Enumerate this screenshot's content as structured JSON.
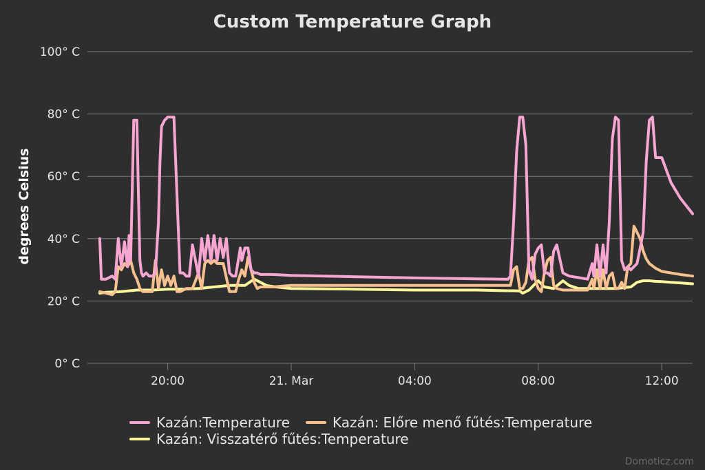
{
  "chart_data": {
    "type": "line",
    "title": "Custom Temperature Graph",
    "ylabel": "degrees Celsius",
    "xlabel": "",
    "ylim": [
      0,
      100
    ],
    "y_ticks": [
      0,
      20,
      40,
      60,
      80,
      100
    ],
    "y_tick_labels": [
      "0° C",
      "20° C",
      "40° C",
      "60° C",
      "80° C",
      "100° C"
    ],
    "x_ticks": [
      {
        "label": "20:00",
        "hour": 20
      },
      {
        "label": "21. Mar",
        "hour": 24
      },
      {
        "label": "04:00",
        "hour": 28
      },
      {
        "label": "08:00",
        "hour": 32
      },
      {
        "label": "12:00",
        "hour": 36
      }
    ],
    "xlim_hours": [
      17.4,
      37.0
    ],
    "grid": true,
    "legend": "bottom",
    "series": [
      {
        "name": "Kazán:Temperature",
        "color": "#f7a6d2",
        "x": [
          17.8,
          17.85,
          18.0,
          18.2,
          18.3,
          18.4,
          18.5,
          18.6,
          18.7,
          18.75,
          18.8,
          18.85,
          18.9,
          19.0,
          19.05,
          19.1,
          19.15,
          19.2,
          19.3,
          19.4,
          19.5,
          19.6,
          19.7,
          19.75,
          19.8,
          19.85,
          19.9,
          20.0,
          20.2,
          20.4,
          20.5,
          20.6,
          20.7,
          20.8,
          21.0,
          21.1,
          21.2,
          21.3,
          21.4,
          21.5,
          21.6,
          21.7,
          21.8,
          21.9,
          22.0,
          22.1,
          22.2,
          22.3,
          22.35,
          22.4,
          22.5,
          22.6,
          22.7,
          22.8,
          22.9,
          23.0,
          23.2,
          23.4,
          24.0,
          26.0,
          28.0,
          30.0,
          31.0,
          31.02,
          31.1,
          31.2,
          31.3,
          31.4,
          31.5,
          31.6,
          31.7,
          31.8,
          31.9,
          32.0,
          32.1,
          32.2,
          32.3,
          32.4,
          32.5,
          32.6,
          32.8,
          33.0,
          33.3,
          33.6,
          33.75,
          33.8,
          33.9,
          34.0,
          34.1,
          34.2,
          34.3,
          34.4,
          34.5,
          34.6,
          34.7,
          34.8,
          34.9,
          35.0,
          35.1,
          35.2,
          35.3,
          35.4,
          35.5,
          35.6,
          35.7,
          35.8,
          36.0,
          36.3,
          36.6,
          37.0
        ],
        "values": [
          40,
          27,
          27,
          28,
          27,
          40,
          31,
          39,
          31,
          41,
          33,
          55,
          78,
          78,
          55,
          33,
          29,
          28,
          29,
          28,
          28,
          29,
          45,
          65,
          76,
          77,
          78,
          79,
          79,
          29,
          29,
          28,
          28,
          38,
          28,
          40,
          33,
          41,
          33,
          41,
          33,
          40,
          34,
          40,
          29,
          28,
          28,
          34,
          37,
          33,
          37,
          37,
          30,
          29,
          29,
          28.5,
          28.5,
          28.5,
          28.2,
          27.8,
          27.4,
          27.1,
          27,
          27,
          28,
          45,
          68,
          79,
          79,
          70,
          30,
          27,
          35,
          37,
          38,
          29,
          29,
          28,
          36,
          38,
          29,
          28,
          27.5,
          27,
          32,
          28,
          38,
          28,
          38,
          29,
          45,
          72,
          79,
          78,
          33,
          30,
          31,
          30,
          31,
          32,
          37,
          42,
          65,
          78,
          79,
          66,
          66,
          58,
          53,
          48
        ]
      },
      {
        "name": "Kazán: Előre menő fűtés:Temperature",
        "color": "#f6c08f",
        "x": [
          17.8,
          18.0,
          18.2,
          18.3,
          18.4,
          18.5,
          18.6,
          18.7,
          18.8,
          18.9,
          19.0,
          19.1,
          19.2,
          19.3,
          19.5,
          19.6,
          19.7,
          19.8,
          19.9,
          20.0,
          20.1,
          20.2,
          20.3,
          20.4,
          20.6,
          20.8,
          21.0,
          21.1,
          21.2,
          21.3,
          21.4,
          21.5,
          21.6,
          21.7,
          21.8,
          22.0,
          22.1,
          22.2,
          22.3,
          22.4,
          22.5,
          22.6,
          22.7,
          22.8,
          22.9,
          23.0,
          23.2,
          23.4,
          24.0,
          26.0,
          28.0,
          30.0,
          31.0,
          31.1,
          31.2,
          31.3,
          31.4,
          31.5,
          31.6,
          31.7,
          31.8,
          31.9,
          32.0,
          32.1,
          32.2,
          32.3,
          32.4,
          32.5,
          32.6,
          32.8,
          33.0,
          33.3,
          33.6,
          33.75,
          33.8,
          33.9,
          34.0,
          34.1,
          34.2,
          34.3,
          34.4,
          34.5,
          34.6,
          34.7,
          34.8,
          34.9,
          35.0,
          35.1,
          35.2,
          35.3,
          35.4,
          35.5,
          35.6,
          35.8,
          36.0,
          36.3,
          36.6,
          37.0
        ],
        "values": [
          23,
          22.5,
          22,
          23,
          31,
          30,
          32,
          31,
          33,
          29,
          27,
          24,
          23,
          23,
          23,
          33,
          24,
          30,
          25,
          28,
          25,
          28,
          23,
          23,
          24,
          24,
          29,
          24,
          32,
          33,
          32,
          33,
          32,
          32,
          32,
          23,
          23,
          23,
          27,
          30,
          28,
          34,
          30,
          26,
          24,
          24.5,
          24.5,
          24.5,
          25,
          25,
          25,
          25,
          25,
          25,
          30,
          31,
          24,
          24,
          26,
          33,
          34,
          27,
          24,
          23,
          29,
          33,
          34,
          25,
          24,
          23.5,
          23.5,
          23.5,
          23.5,
          27,
          24,
          30,
          24,
          30,
          24,
          28,
          29,
          24,
          24,
          26,
          24,
          31,
          32,
          44,
          42,
          40,
          36,
          33.5,
          32,
          30.5,
          29.5,
          29,
          28.5,
          28
        ]
      },
      {
        "name": "Kazán: Visszatérő fűtés:Temperature",
        "color": "#fbf69b",
        "x": [
          17.8,
          18.0,
          18.5,
          19.0,
          19.5,
          20.0,
          20.5,
          21.0,
          21.5,
          22.0,
          22.5,
          22.8,
          23.0,
          23.2,
          23.5,
          24.0,
          26.0,
          28.0,
          30.0,
          31.0,
          31.2,
          31.4,
          31.5,
          31.7,
          32.0,
          32.2,
          32.5,
          32.8,
          33.0,
          33.3,
          33.6,
          34.0,
          34.5,
          35.0,
          35.2,
          35.4,
          35.6,
          35.8,
          36.0,
          36.3,
          36.6,
          37.0
        ],
        "values": [
          22.5,
          22.8,
          23,
          23.5,
          23.5,
          23.8,
          23.8,
          24,
          24.5,
          25,
          25,
          27,
          26,
          25,
          24.5,
          24,
          23.8,
          23.5,
          23.5,
          23.3,
          23.3,
          23.2,
          22.5,
          23.5,
          26.5,
          24.5,
          24,
          26.5,
          25,
          24,
          24,
          24,
          24,
          24.5,
          26,
          26.5,
          26.5,
          26.3,
          26.2,
          26,
          25.8,
          25.5
        ]
      }
    ]
  },
  "credit": "Domoticz.com"
}
